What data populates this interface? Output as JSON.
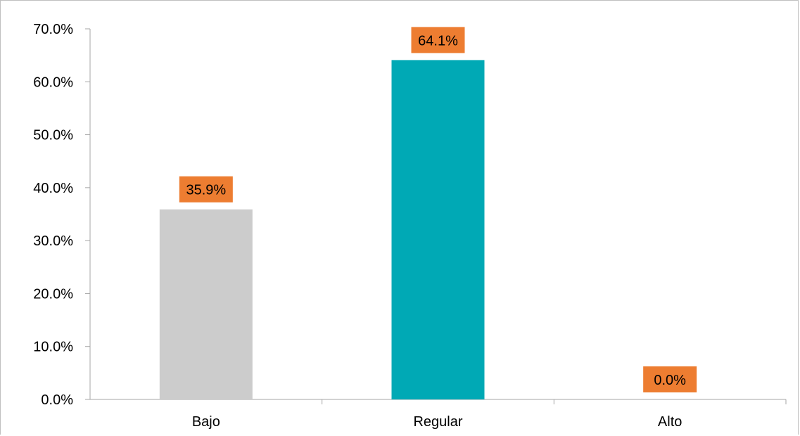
{
  "chart_data": {
    "type": "bar",
    "categories": [
      "Bajo",
      "Regular",
      "Alto"
    ],
    "values": [
      35.9,
      64.1,
      0.0
    ],
    "value_labels": [
      "35.9%",
      "64.1%",
      "0.0%"
    ],
    "y_ticks": [
      "0.0%",
      "10.0%",
      "20.0%",
      "30.0%",
      "40.0%",
      "50.0%",
      "60.0%",
      "70.0%"
    ],
    "ylim": [
      0,
      70
    ],
    "grid": false,
    "legend": "none",
    "bar_colors": [
      "#cccccc",
      "#00a9b5",
      "#2e75b6"
    ],
    "label_background": "#ed7d31",
    "axis_color": "#a6a6a6"
  }
}
